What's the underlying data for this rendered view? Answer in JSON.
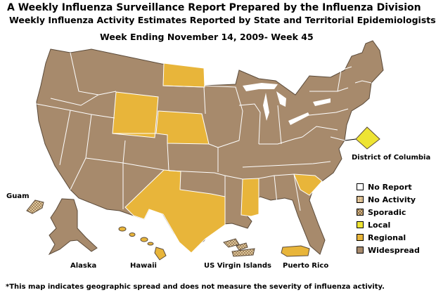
{
  "title": "A Weekly Influenza Surveillance Report Prepared by the Influenza Division",
  "subtitle": "Weekly Influenza Activity Estimates Reported by State and Territorial Epidemiologists*",
  "week": "Week Ending November 14, 2009- Week 45",
  "footnote": "*This map indicates geographic spread and does not measure the severity of influenza activity.",
  "colors": {
    "no_report": "#ffffff",
    "no_activity": "#f3dcb3",
    "sporadic": "#e8cf9d",
    "local": "#eee433",
    "regional": "#e8b53a",
    "widespread": "#a78a6c",
    "border": "#ffffff",
    "outline": "#5a4a3a"
  },
  "legend": [
    {
      "label": "No Report",
      "color": "#ffffff"
    },
    {
      "label": "No Activity",
      "color": "#f3dcb3"
    },
    {
      "label": "Sporadic",
      "color": "#e8cf9d"
    },
    {
      "label": "Local",
      "color": "#eee433"
    },
    {
      "label": "Regional",
      "color": "#e8b53a"
    },
    {
      "label": "Widespread",
      "color": "#a78a6c"
    }
  ],
  "labels": {
    "alaska": "Alaska",
    "hawaii": "Hawaii",
    "guam": "Guam",
    "usvi": "US Virgin Islands",
    "puerto_rico": "Puerto Rico",
    "dc": "District of Columbia"
  },
  "regional_states": [
    "North Dakota",
    "Wyoming",
    "Nebraska",
    "Texas",
    "Mississippi",
    "South Carolina",
    "Hawaii",
    "Puerto Rico"
  ],
  "local_areas": [
    "District of Columbia"
  ],
  "sporadic_areas": [
    "Guam",
    "US Virgin Islands"
  ]
}
